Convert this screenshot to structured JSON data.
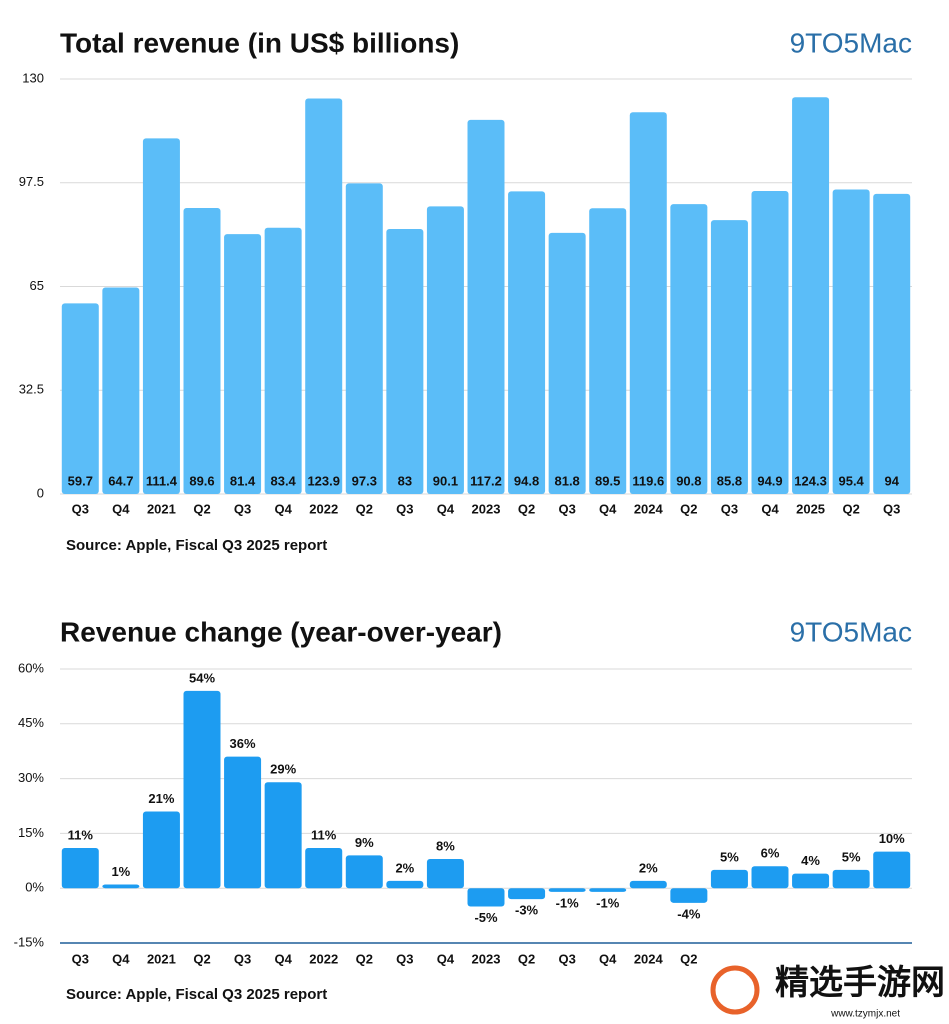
{
  "chart_data": [
    {
      "type": "bar",
      "title": "Total revenue (in US$ billions)",
      "logo": "9TO5Mac",
      "source": "Source: Apple, Fiscal Q3 2025 report",
      "categories": [
        "Q3",
        "Q4",
        "2021",
        "Q2",
        "Q3",
        "Q4",
        "2022",
        "Q2",
        "Q3",
        "Q4",
        "2023",
        "Q2",
        "Q3",
        "Q4",
        "2024",
        "Q2",
        "Q3",
        "Q4",
        "2025",
        "Q2",
        "Q3"
      ],
      "values": [
        59.7,
        64.7,
        111.4,
        89.6,
        81.4,
        83.4,
        123.9,
        97.3,
        83,
        90.1,
        117.2,
        94.8,
        81.8,
        89.5,
        119.6,
        90.8,
        85.8,
        94.9,
        124.3,
        95.4,
        94
      ],
      "color": "#5bbdf8",
      "ylim": [
        0,
        130
      ],
      "yticks": [
        0,
        32.5,
        65,
        97.5,
        130
      ],
      "grid": true
    },
    {
      "type": "bar",
      "title": "Revenue change (year-over-year)",
      "logo": "9TO5Mac",
      "source": "Source: Apple, Fiscal Q3 2025 report",
      "categories": [
        "Q3",
        "Q4",
        "2021",
        "Q2",
        "Q3",
        "Q4",
        "2022",
        "Q2",
        "Q3",
        "Q4",
        "2023",
        "Q2",
        "Q3",
        "Q4",
        "2024",
        "Q2",
        null,
        null,
        null,
        null,
        null
      ],
      "values": [
        11,
        1,
        21,
        54,
        36,
        29,
        11,
        9,
        2,
        8,
        -5,
        -3,
        -1,
        -1,
        2,
        -4,
        5,
        6,
        4,
        5,
        10
      ],
      "value_labels": [
        "11%",
        "1%",
        "21%",
        "54%",
        "36%",
        "29%",
        "11%",
        "9%",
        "2%",
        "8%",
        "-5%",
        "-3%",
        "-1%",
        "-1%",
        "2%",
        "-4%",
        "5%",
        "6%",
        "4%",
        "5%",
        "10%"
      ],
      "color": "#1d9cf1",
      "ylim": [
        -15,
        60
      ],
      "yticks": [
        {
          "value": -15,
          "label": "-15%"
        },
        {
          "value": 0,
          "label": "0%"
        },
        {
          "value": 15,
          "label": "15%"
        },
        {
          "value": 30,
          "label": "30%"
        },
        {
          "value": 45,
          "label": "45%"
        },
        {
          "value": 60,
          "label": "60%"
        }
      ],
      "grid": true
    }
  ],
  "watermark": {
    "text": "精选手游网",
    "url": "www.tzymjx.net"
  }
}
